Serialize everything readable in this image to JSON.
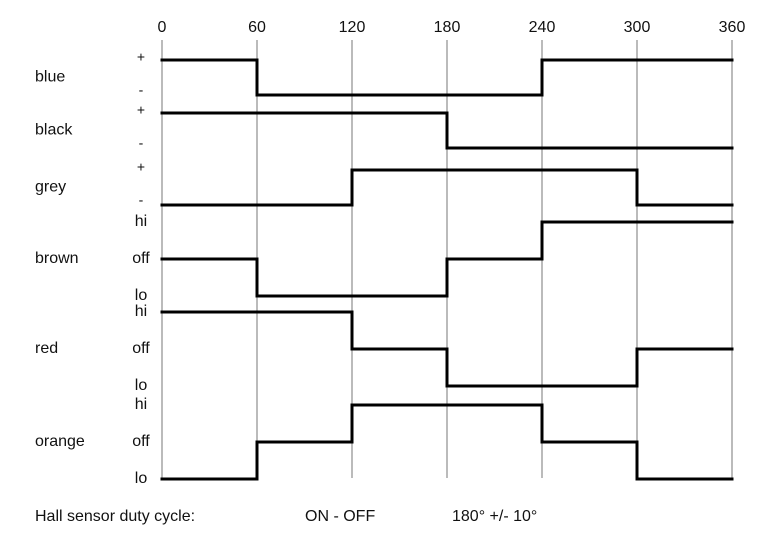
{
  "chart_data": {
    "type": "step",
    "xlim": [
      0,
      360
    ],
    "xticks": [
      0,
      60,
      120,
      180,
      240,
      300,
      360
    ],
    "grid": true,
    "color": "#000000",
    "series": [
      {
        "name": "blue",
        "levels": [
          "+",
          "-"
        ],
        "values": [
          "+",
          "-",
          "-",
          "-",
          "+",
          "+"
        ]
      },
      {
        "name": "black",
        "levels": [
          "+",
          "-"
        ],
        "values": [
          "+",
          "+",
          "+",
          "-",
          "-",
          "-"
        ]
      },
      {
        "name": "grey",
        "levels": [
          "+",
          "-"
        ],
        "values": [
          "-",
          "-",
          "+",
          "+",
          "+",
          "-"
        ]
      },
      {
        "name": "brown",
        "levels": [
          "hi",
          "off",
          "lo"
        ],
        "values": [
          "off",
          "lo",
          "lo",
          "off",
          "hi",
          "hi"
        ]
      },
      {
        "name": "red",
        "levels": [
          "hi",
          "off",
          "lo"
        ],
        "values": [
          "hi",
          "hi",
          "off",
          "lo",
          "lo",
          "off"
        ]
      },
      {
        "name": "orange",
        "levels": [
          "hi",
          "off",
          "lo"
        ],
        "values": [
          "lo",
          "off",
          "hi",
          "hi",
          "off",
          "lo"
        ]
      }
    ],
    "footer": [
      "Hall sensor duty cycle:",
      "ON - OFF",
      "180° +/- 10°"
    ]
  }
}
